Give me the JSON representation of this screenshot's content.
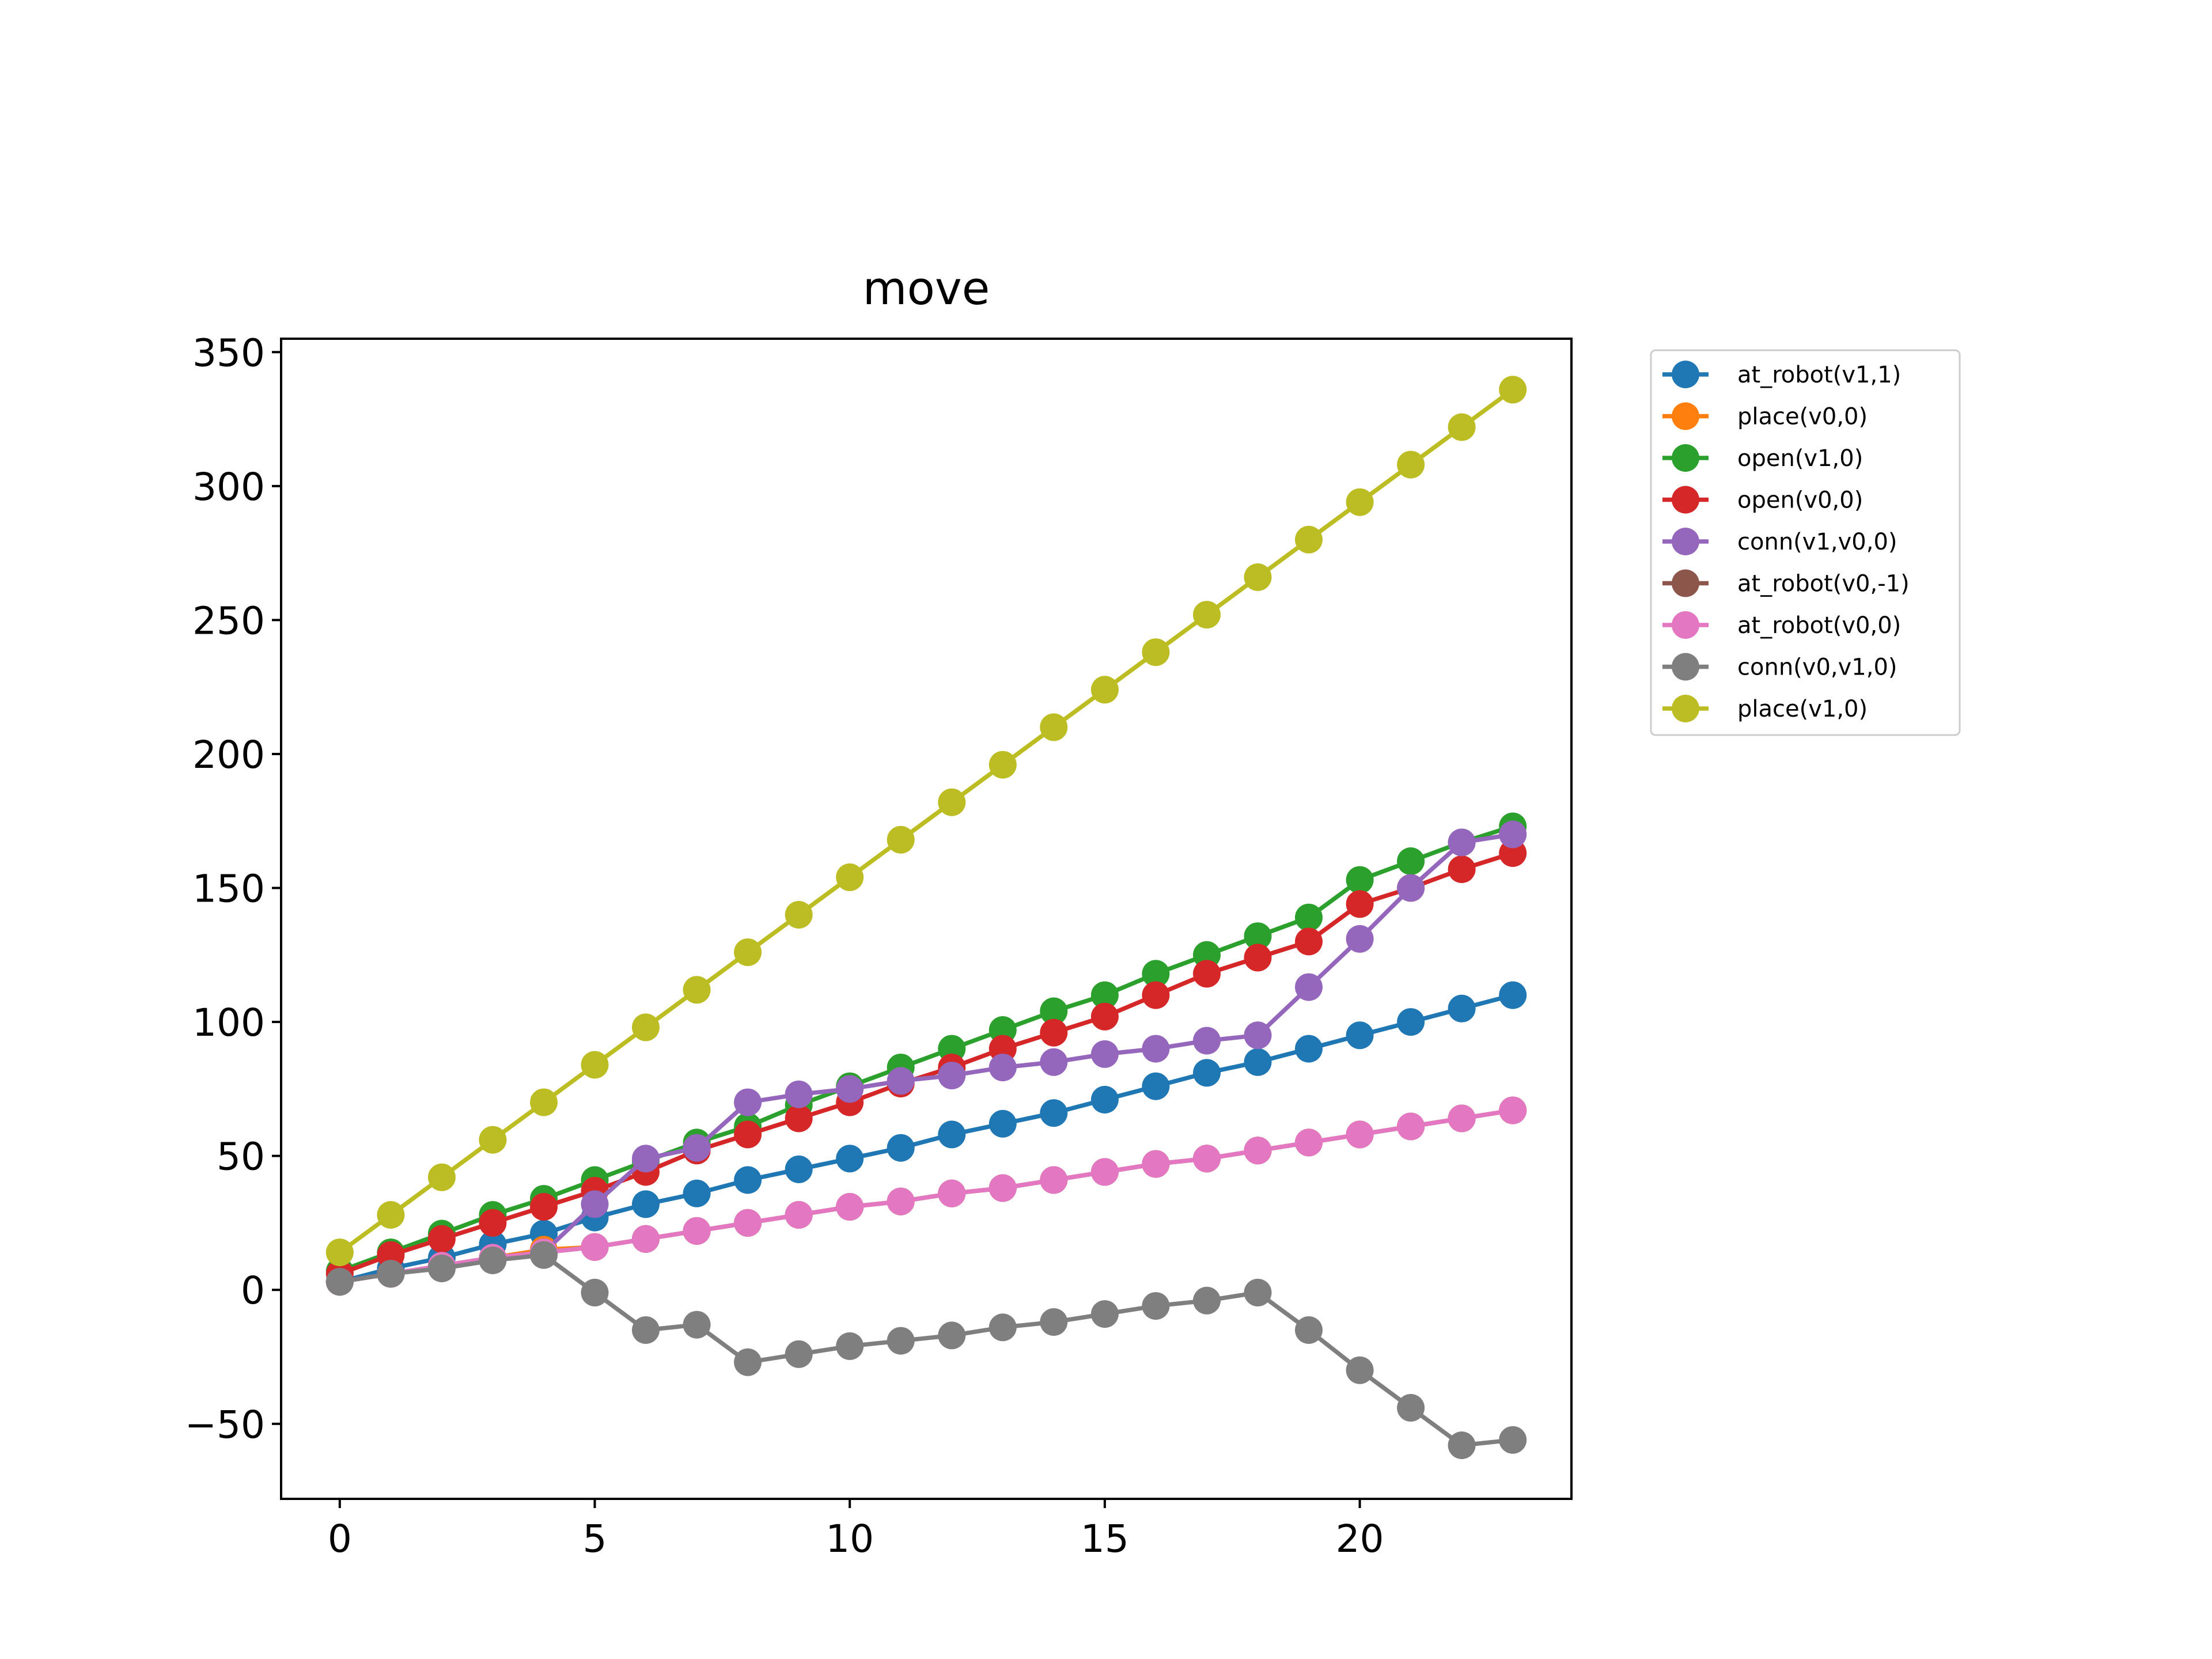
{
  "chart_data": {
    "type": "line",
    "title": "move",
    "xlabel": "",
    "ylabel": "",
    "xlim": [
      -1.15,
      24.15
    ],
    "ylim": [
      -78,
      355
    ],
    "xticks": [
      0,
      5,
      10,
      15,
      20
    ],
    "yticks": [
      -50,
      0,
      50,
      100,
      150,
      200,
      250,
      300,
      350
    ],
    "ytick_labels": [
      "−50",
      "0",
      "50",
      "100",
      "150",
      "200",
      "250",
      "300",
      "350"
    ],
    "grid": false,
    "legend_position": "outside-top-right",
    "x": [
      0,
      1,
      2,
      3,
      4,
      5,
      6,
      7,
      8,
      9,
      10,
      11,
      12,
      13,
      14,
      15,
      16,
      17,
      18,
      19,
      20,
      21,
      22,
      23
    ],
    "series": [
      {
        "name": "at_robot(v1,1)",
        "color": "#1f77b4",
        "values": [
          3,
          8,
          12,
          17,
          21,
          27,
          32,
          36,
          41,
          45,
          49,
          53,
          58,
          62,
          66,
          71,
          76,
          81,
          85,
          90,
          95,
          100,
          105,
          110
        ]
      },
      {
        "name": "place(v0,0)",
        "color": "#ff7f0e",
        "values": [
          3,
          6,
          9,
          12,
          15,
          16,
          19,
          22,
          25,
          28,
          31,
          33,
          36,
          38,
          41,
          44,
          47,
          49,
          52,
          55,
          58,
          61,
          64,
          67
        ]
      },
      {
        "name": "open(v1,0)",
        "color": "#2ca02c",
        "values": [
          7,
          14,
          21,
          28,
          34,
          41,
          48,
          55,
          61,
          69,
          76,
          83,
          90,
          97,
          104,
          110,
          118,
          125,
          132,
          139,
          153,
          160,
          167,
          173
        ]
      },
      {
        "name": "open(v0,0)",
        "color": "#d62728",
        "values": [
          6,
          13,
          19,
          25,
          31,
          37,
          44,
          52,
          58,
          64,
          70,
          77,
          83,
          90,
          96,
          102,
          110,
          118,
          124,
          130,
          144,
          150,
          157,
          163
        ]
      },
      {
        "name": "conn(v1,v0,0)",
        "color": "#9467bd",
        "values": [
          3,
          6,
          9,
          12,
          14,
          32,
          49,
          53,
          70,
          73,
          75,
          78,
          80,
          83,
          85,
          88,
          90,
          93,
          95,
          113,
          131,
          150,
          167,
          170
        ]
      },
      {
        "name": "at_robot(v0,-1)",
        "color": "#8c564b",
        "values": [
          3,
          6,
          9,
          12,
          14,
          16,
          19,
          22,
          25,
          28,
          31,
          33,
          36,
          38,
          41,
          44,
          47,
          49,
          52,
          55,
          58,
          61,
          64,
          67
        ]
      },
      {
        "name": "at_robot(v0,0)",
        "color": "#e377c2",
        "values": [
          3,
          6,
          9,
          12,
          14,
          16,
          19,
          22,
          25,
          28,
          31,
          33,
          36,
          38,
          41,
          44,
          47,
          49,
          52,
          55,
          58,
          61,
          64,
          67
        ]
      },
      {
        "name": "conn(v0,v1,0)",
        "color": "#7f7f7f",
        "values": [
          3,
          6,
          8,
          11,
          13,
          -1,
          -15,
          -13,
          -27,
          -24,
          -21,
          -19,
          -17,
          -14,
          -12,
          -9,
          -6,
          -4,
          -1,
          -15,
          -30,
          -44,
          -58,
          -56
        ]
      },
      {
        "name": "place(v1,0)",
        "color": "#bcbd22",
        "values": [
          14,
          28,
          42,
          56,
          70,
          84,
          98,
          112,
          126,
          140,
          154,
          168,
          182,
          196,
          210,
          224,
          238,
          252,
          266,
          280,
          294,
          308,
          322,
          336
        ]
      }
    ]
  }
}
